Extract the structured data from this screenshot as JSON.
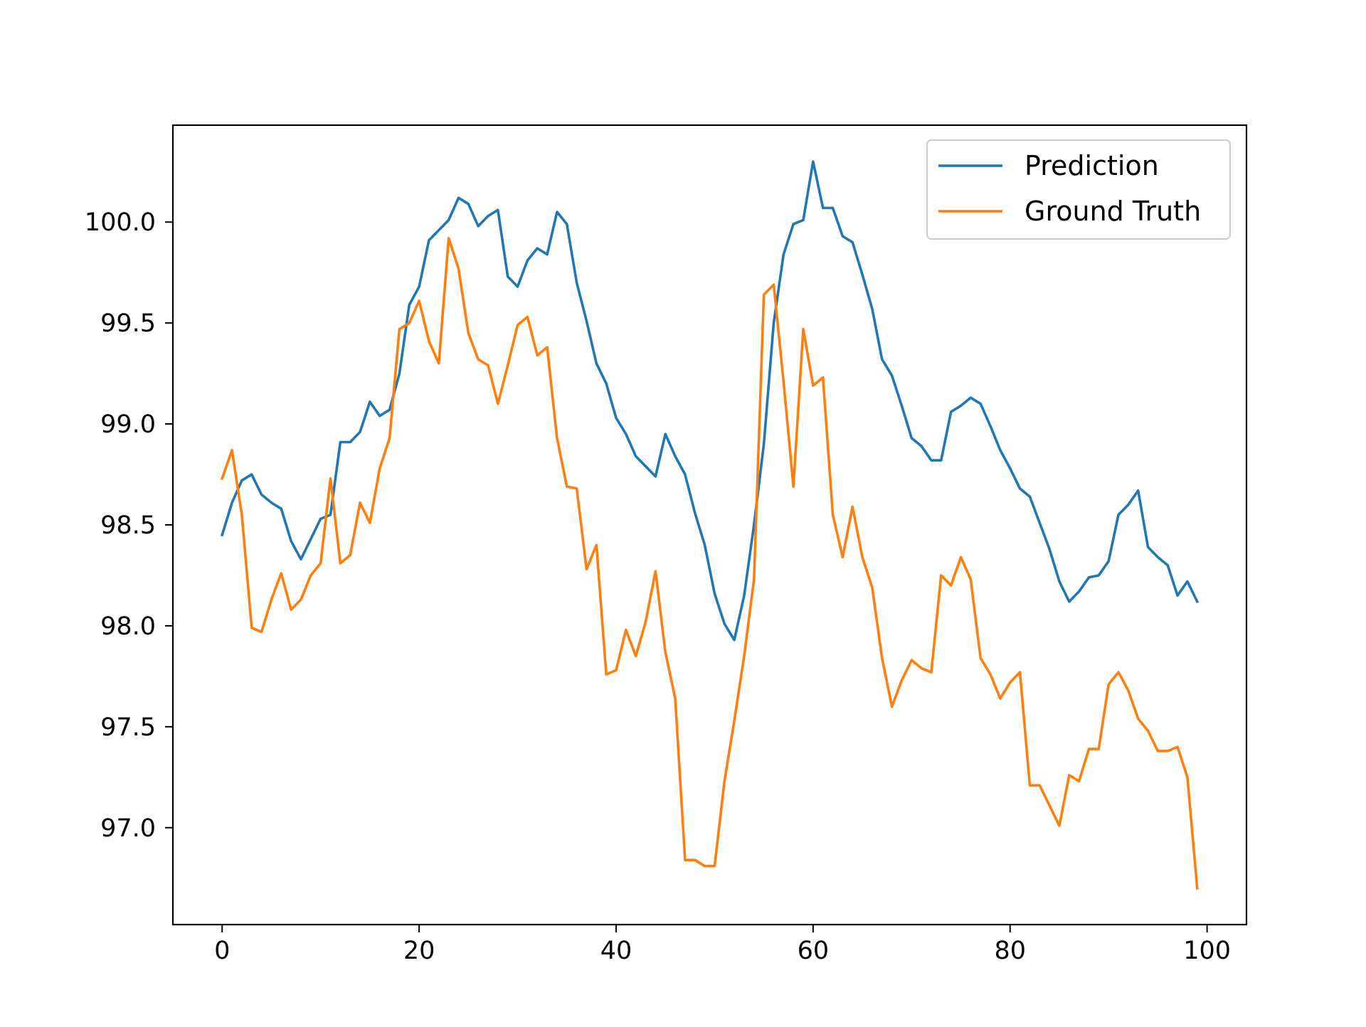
{
  "colors": {
    "prediction": "#1f77b4",
    "ground_truth": "#ff7f0e",
    "axes": "#000000",
    "legend_border": "#cccccc"
  },
  "chart_data": {
    "type": "line",
    "title": "",
    "xlabel": "",
    "ylabel": "",
    "xlim": [
      -5,
      104
    ],
    "ylim": [
      96.52,
      100.48
    ],
    "xticks": [
      0,
      20,
      40,
      60,
      80,
      100
    ],
    "yticks": [
      97.0,
      97.5,
      98.0,
      98.5,
      99.0,
      99.5,
      100.0
    ],
    "xtick_labels": [
      "0",
      "20",
      "40",
      "60",
      "80",
      "100"
    ],
    "ytick_labels": [
      "97.0",
      "97.5",
      "98.0",
      "98.5",
      "99.0",
      "99.5",
      "100.0"
    ],
    "grid": false,
    "legend_position": "top-right",
    "series": [
      {
        "name": "Prediction",
        "color": "#1f77b4",
        "x": [
          0,
          1,
          2,
          3,
          4,
          5,
          6,
          7,
          8,
          9,
          10,
          11,
          12,
          13,
          14,
          15,
          16,
          17,
          18,
          19,
          20,
          21,
          22,
          23,
          24,
          25,
          26,
          27,
          28,
          29,
          30,
          31,
          32,
          33,
          34,
          35,
          36,
          37,
          38,
          39,
          40,
          41,
          42,
          43,
          44,
          45,
          46,
          47,
          48,
          49,
          50,
          51,
          52,
          53,
          54,
          55,
          56,
          57,
          58,
          59,
          60,
          61,
          62,
          63,
          64,
          65,
          66,
          67,
          68,
          69,
          70,
          71,
          72,
          73,
          74,
          75,
          76,
          77,
          78,
          79,
          80,
          81,
          82,
          83,
          84,
          85,
          86,
          87,
          88,
          89,
          90,
          91,
          92,
          93,
          94,
          95,
          96,
          97,
          98,
          99
        ],
        "values": [
          98.45,
          98.61,
          98.72,
          98.75,
          98.65,
          98.61,
          98.58,
          98.42,
          98.33,
          98.43,
          98.53,
          98.55,
          98.91,
          98.91,
          98.96,
          99.11,
          99.04,
          99.07,
          99.25,
          99.59,
          99.68,
          99.91,
          99.96,
          100.01,
          100.12,
          100.09,
          99.98,
          100.03,
          100.06,
          99.73,
          99.68,
          99.81,
          99.87,
          99.84,
          100.05,
          99.99,
          99.7,
          99.51,
          99.3,
          99.2,
          99.03,
          98.95,
          98.84,
          98.79,
          98.74,
          98.95,
          98.84,
          98.75,
          98.56,
          98.4,
          98.16,
          98.01,
          97.93,
          98.15,
          98.5,
          98.9,
          99.5,
          99.84,
          99.99,
          100.01,
          100.3,
          100.07,
          100.07,
          99.93,
          99.9,
          99.74,
          99.57,
          99.32,
          99.24,
          99.09,
          98.93,
          98.89,
          98.82,
          98.82,
          99.06,
          99.09,
          99.13,
          99.1,
          98.99,
          98.87,
          98.78,
          98.68,
          98.64,
          98.51,
          98.38,
          98.22,
          98.12,
          98.17,
          98.24,
          98.25,
          98.32,
          98.55,
          98.6,
          98.67,
          98.39,
          98.34,
          98.3,
          98.15,
          98.22,
          98.12
        ]
      },
      {
        "name": "Ground Truth",
        "color": "#ff7f0e",
        "x": [
          0,
          1,
          2,
          3,
          4,
          5,
          6,
          7,
          8,
          9,
          10,
          11,
          12,
          13,
          14,
          15,
          16,
          17,
          18,
          19,
          20,
          21,
          22,
          23,
          24,
          25,
          26,
          27,
          28,
          29,
          30,
          31,
          32,
          33,
          34,
          35,
          36,
          37,
          38,
          39,
          40,
          41,
          42,
          43,
          44,
          45,
          46,
          47,
          48,
          49,
          50,
          51,
          52,
          53,
          54,
          55,
          56,
          57,
          58,
          59,
          60,
          61,
          62,
          63,
          64,
          65,
          66,
          67,
          68,
          69,
          70,
          71,
          72,
          73,
          74,
          75,
          76,
          77,
          78,
          79,
          80,
          81,
          82,
          83,
          84,
          85,
          86,
          87,
          88,
          89,
          90,
          91,
          92,
          93,
          94,
          95,
          96,
          97,
          98,
          99
        ],
        "values": [
          98.73,
          98.87,
          98.55,
          97.99,
          97.97,
          98.13,
          98.26,
          98.08,
          98.13,
          98.25,
          98.31,
          98.73,
          98.31,
          98.35,
          98.61,
          98.51,
          98.78,
          98.93,
          99.47,
          99.5,
          99.61,
          99.41,
          99.3,
          99.92,
          99.77,
          99.45,
          99.32,
          99.29,
          99.1,
          99.29,
          99.49,
          99.53,
          99.34,
          99.38,
          98.93,
          98.69,
          98.68,
          98.28,
          98.4,
          97.76,
          97.78,
          97.98,
          97.85,
          98.02,
          98.27,
          97.87,
          97.64,
          96.84,
          96.84,
          96.81,
          96.81,
          97.23,
          97.53,
          97.85,
          98.23,
          99.64,
          99.69,
          99.21,
          98.69,
          99.47,
          99.19,
          99.23,
          98.55,
          98.34,
          98.59,
          98.34,
          98.19,
          97.84,
          97.6,
          97.73,
          97.83,
          97.79,
          97.77,
          98.25,
          98.2,
          98.34,
          98.23,
          97.84,
          97.76,
          97.64,
          97.72,
          97.77,
          97.21,
          97.21,
          97.11,
          97.01,
          97.26,
          97.23,
          97.39,
          97.39,
          97.71,
          97.77,
          97.68,
          97.54,
          97.48,
          97.38,
          97.38,
          97.4,
          97.25,
          96.7
        ]
      }
    ]
  }
}
